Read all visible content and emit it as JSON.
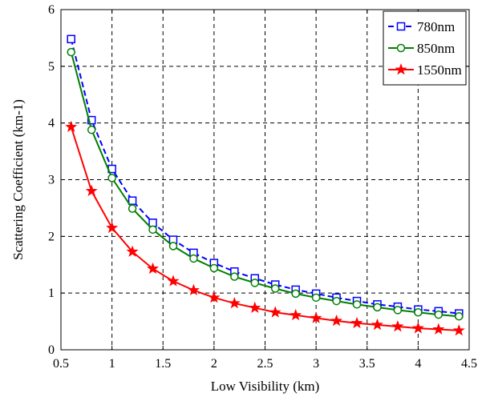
{
  "chart_data": {
    "type": "line",
    "xlabel": "Low Visibility (km)",
    "ylabel": "Scattering Coefficient (km-1)",
    "xlim": [
      0.5,
      4.5
    ],
    "ylim": [
      0,
      6
    ],
    "xticks": [
      0.5,
      1,
      1.5,
      2,
      2.5,
      3,
      3.5,
      4,
      4.5
    ],
    "xtick_labels": [
      "0.5",
      "1",
      "1.5",
      "2",
      "2.5",
      "3",
      "3.5",
      "4",
      "4.5"
    ],
    "yticks": [
      0,
      1,
      2,
      3,
      4,
      5,
      6
    ],
    "ytick_labels": [
      "0",
      "1",
      "2",
      "3",
      "4",
      "5",
      "6"
    ],
    "grid": true,
    "legend_position": "top-right",
    "x": [
      0.6,
      0.8,
      1.0,
      1.2,
      1.4,
      1.6,
      1.8,
      2.0,
      2.2,
      2.4,
      2.6,
      2.8,
      3.0,
      3.2,
      3.4,
      3.6,
      3.8,
      4.0,
      4.2,
      4.4
    ],
    "series": [
      {
        "name": "780nm",
        "color": "#0000ff",
        "line_style": "dashed",
        "marker": "square",
        "values": [
          5.48,
          4.05,
          3.19,
          2.63,
          2.24,
          1.94,
          1.71,
          1.53,
          1.38,
          1.26,
          1.15,
          1.06,
          0.99,
          0.92,
          0.86,
          0.8,
          0.76,
          0.71,
          0.68,
          0.64
        ]
      },
      {
        "name": "850nm",
        "color": "#008000",
        "line_style": "solid",
        "marker": "circle",
        "values": [
          5.25,
          3.88,
          3.03,
          2.49,
          2.12,
          1.83,
          1.61,
          1.44,
          1.29,
          1.18,
          1.08,
          0.99,
          0.92,
          0.86,
          0.8,
          0.75,
          0.7,
          0.66,
          0.62,
          0.59
        ]
      },
      {
        "name": "1550nm",
        "color": "#ff0000",
        "line_style": "solid",
        "marker": "star",
        "values": [
          3.93,
          2.8,
          2.15,
          1.73,
          1.43,
          1.21,
          1.05,
          0.92,
          0.82,
          0.74,
          0.66,
          0.61,
          0.56,
          0.51,
          0.47,
          0.44,
          0.41,
          0.38,
          0.36,
          0.34
        ]
      }
    ]
  }
}
